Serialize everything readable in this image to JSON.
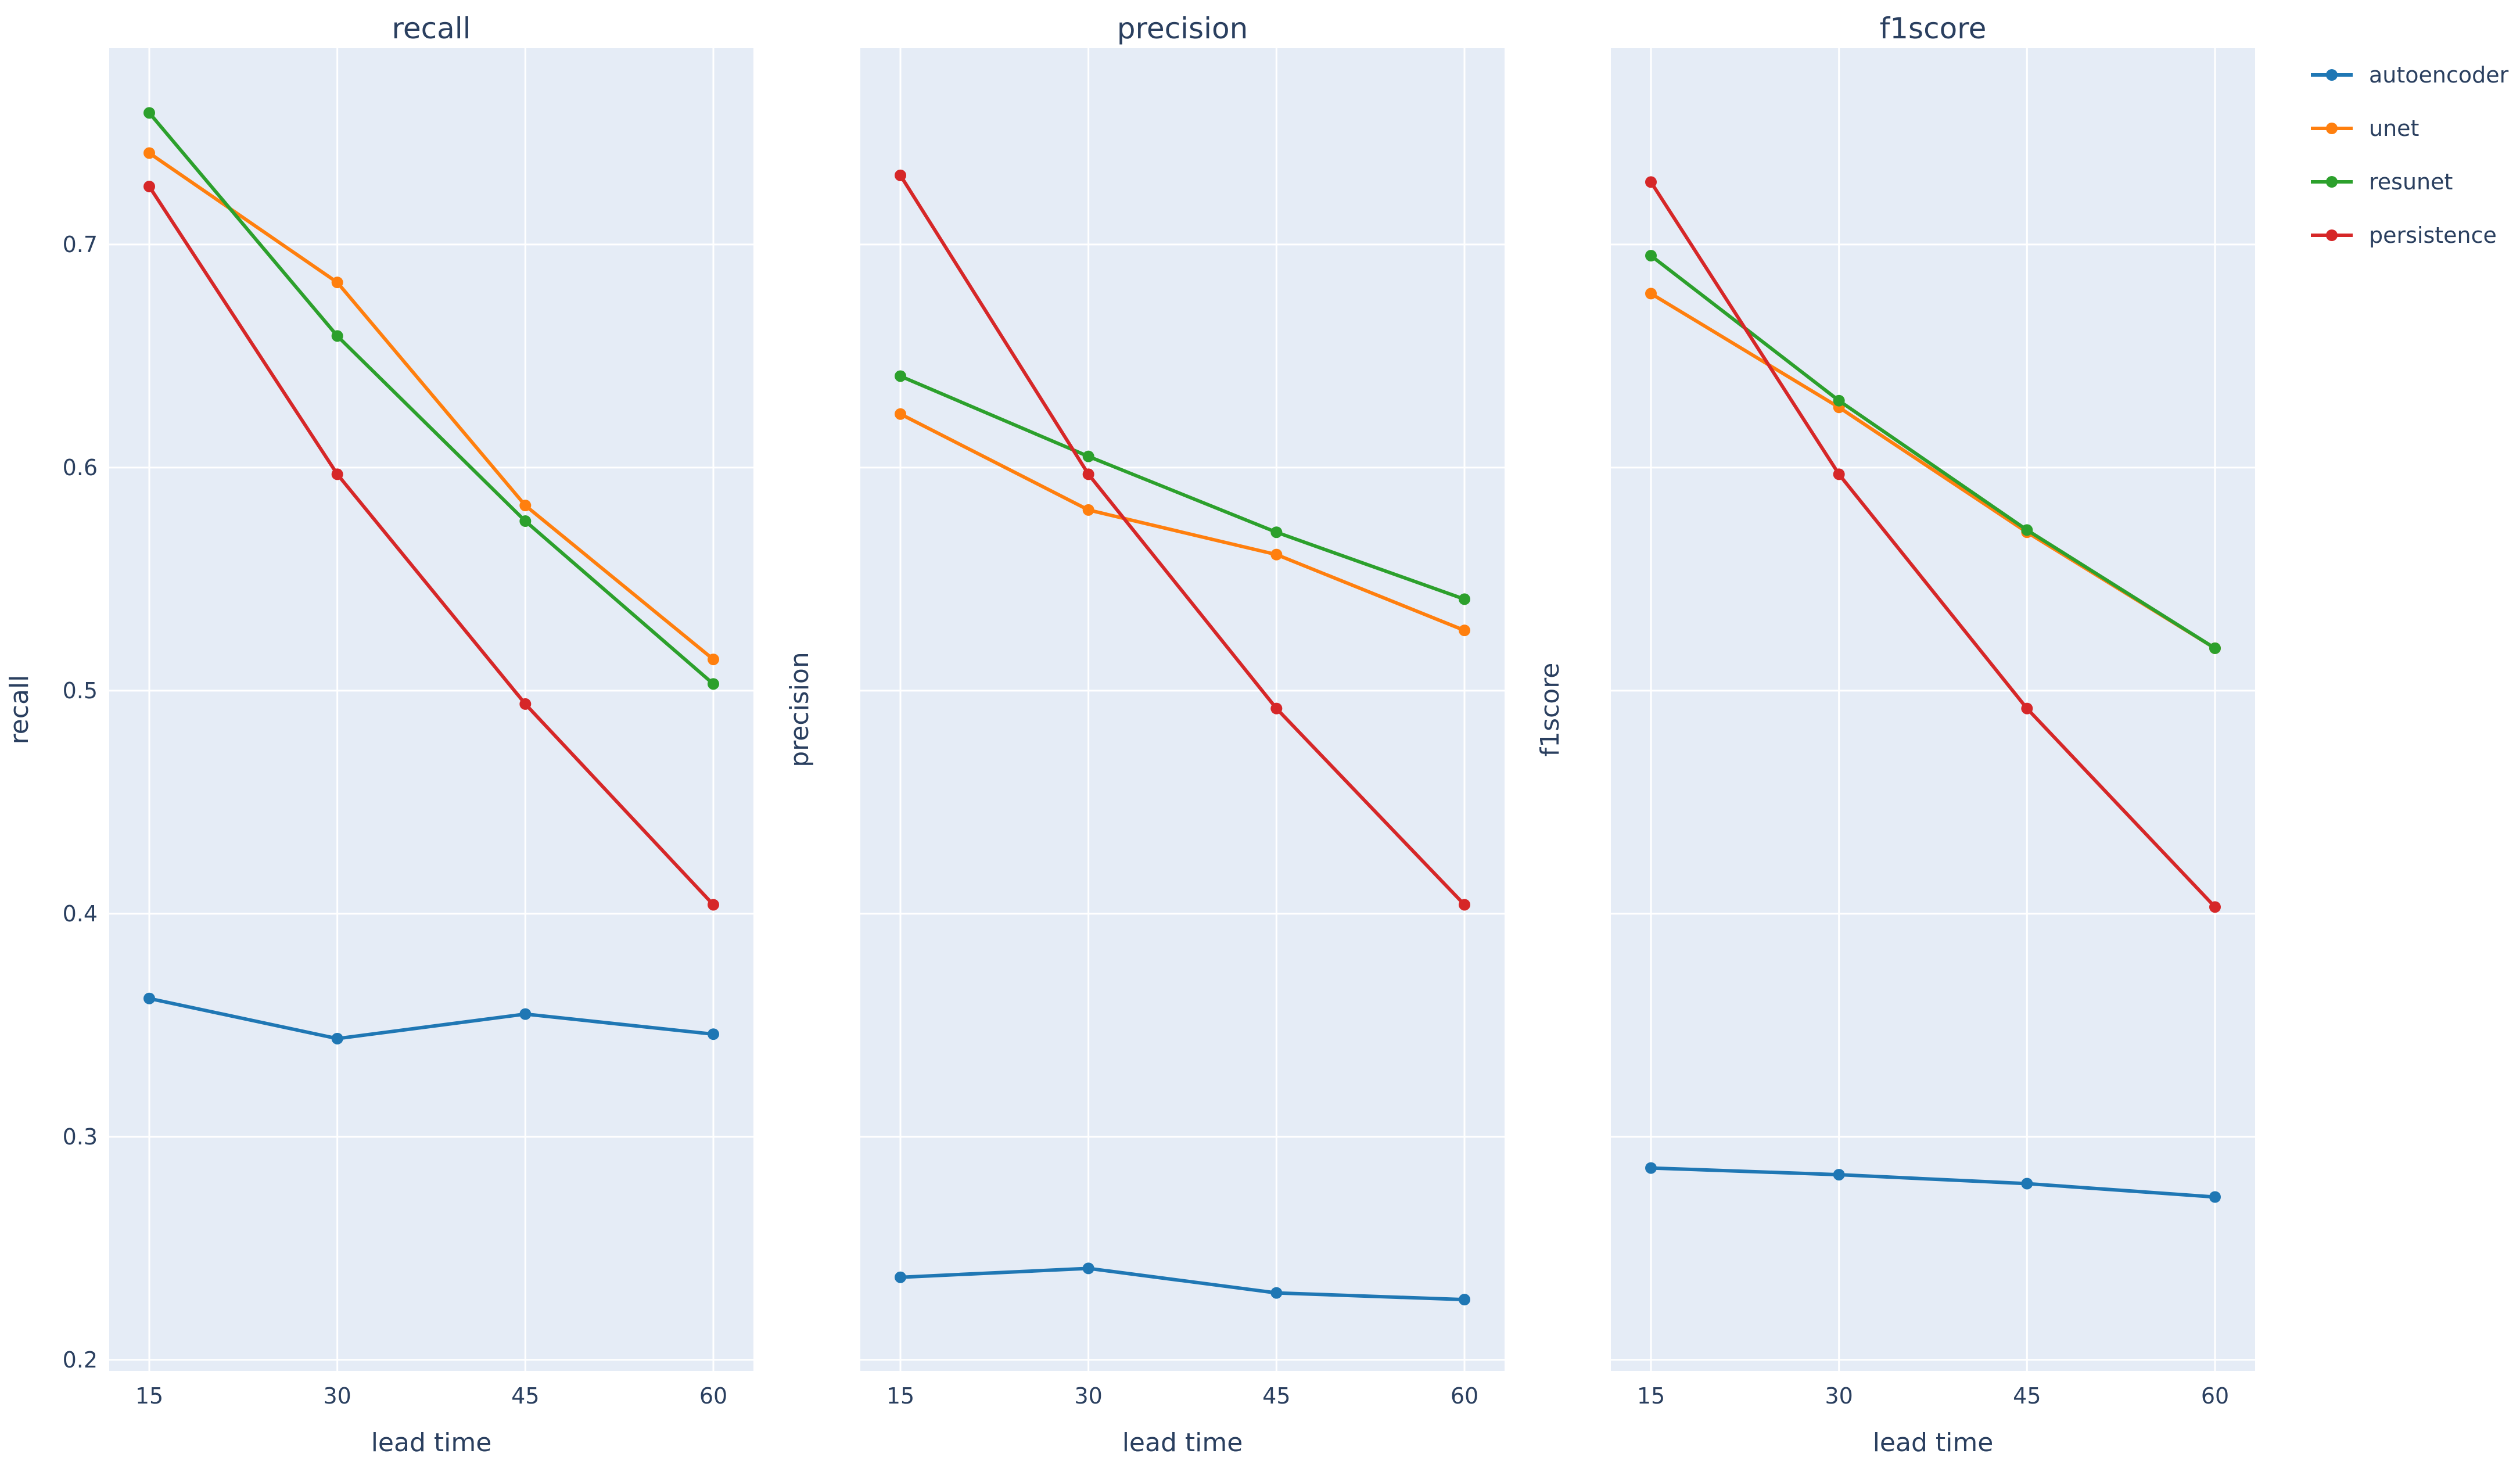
{
  "colors": {
    "autoencoder": "#1f77b4",
    "unet": "#ff7f0e",
    "resunet": "#2ca02c",
    "persistence": "#d62728",
    "plot_bg": "#e5ecf6",
    "grid": "#ffffff",
    "text": "#2a3f5f"
  },
  "legend": {
    "placement": "top-right",
    "entries": [
      "autoencoder",
      "unet",
      "resunet",
      "persistence"
    ]
  },
  "chart_data": [
    {
      "type": "line",
      "title": "recall",
      "xlabel": "lead time",
      "ylabel": "recall",
      "x": [
        15,
        30,
        45,
        60
      ],
      "xticks": [
        "15",
        "30",
        "45",
        "60"
      ],
      "ylim": [
        0.195,
        0.788
      ],
      "yticks": [
        "0.2",
        "0.3",
        "0.4",
        "0.5",
        "0.6",
        "0.7"
      ],
      "show_yticks": true,
      "series": [
        {
          "name": "autoencoder",
          "values": [
            0.362,
            0.344,
            0.355,
            0.346
          ]
        },
        {
          "name": "unet",
          "values": [
            0.741,
            0.683,
            0.583,
            0.514
          ]
        },
        {
          "name": "resunet",
          "values": [
            0.759,
            0.659,
            0.576,
            0.503
          ]
        },
        {
          "name": "persistence",
          "values": [
            0.726,
            0.597,
            0.494,
            0.404
          ]
        }
      ]
    },
    {
      "type": "line",
      "title": "precision",
      "xlabel": "lead time",
      "ylabel": "precision",
      "x": [
        15,
        30,
        45,
        60
      ],
      "xticks": [
        "15",
        "30",
        "45",
        "60"
      ],
      "ylim": [
        0.195,
        0.788
      ],
      "yticks": [
        "0.2",
        "0.3",
        "0.4",
        "0.5",
        "0.6",
        "0.7"
      ],
      "show_yticks": false,
      "series": [
        {
          "name": "autoencoder",
          "values": [
            0.237,
            0.241,
            0.23,
            0.227
          ]
        },
        {
          "name": "unet",
          "values": [
            0.624,
            0.581,
            0.561,
            0.527
          ]
        },
        {
          "name": "resunet",
          "values": [
            0.641,
            0.605,
            0.571,
            0.541
          ]
        },
        {
          "name": "persistence",
          "values": [
            0.731,
            0.597,
            0.492,
            0.404
          ]
        }
      ]
    },
    {
      "type": "line",
      "title": "f1score",
      "xlabel": "lead time",
      "ylabel": "f1score",
      "x": [
        15,
        30,
        45,
        60
      ],
      "xticks": [
        "15",
        "30",
        "45",
        "60"
      ],
      "ylim": [
        0.195,
        0.788
      ],
      "yticks": [
        "0.2",
        "0.3",
        "0.4",
        "0.5",
        "0.6",
        "0.7"
      ],
      "show_yticks": false,
      "series": [
        {
          "name": "autoencoder",
          "values": [
            0.286,
            0.283,
            0.279,
            0.273
          ]
        },
        {
          "name": "unet",
          "values": [
            0.678,
            0.627,
            0.571,
            0.519
          ]
        },
        {
          "name": "resunet",
          "values": [
            0.695,
            0.63,
            0.572,
            0.519
          ]
        },
        {
          "name": "persistence",
          "values": [
            0.728,
            0.597,
            0.492,
            0.403
          ]
        }
      ]
    }
  ]
}
